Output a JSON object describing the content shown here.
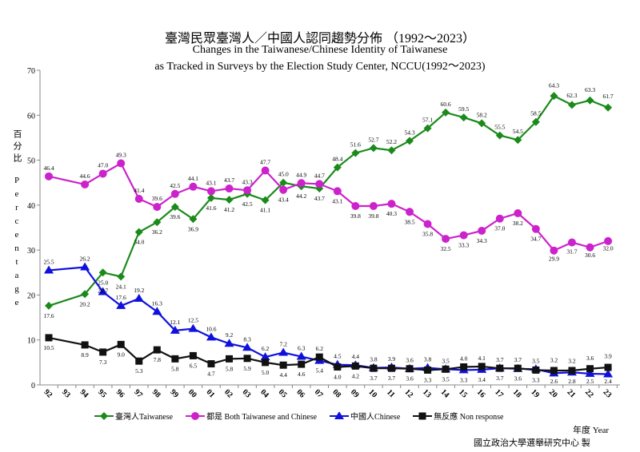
{
  "chart_data": {
    "type": "line",
    "title": "臺灣民眾臺灣人／中國人認同趨勢分佈 （1992～2023）",
    "subtitle_lines": [
      "Changes in the Taiwanese/Chinese Identity of Taiwanese",
      "as Tracked in Surveys by the Election Study Center, NCCU(1992～2023)"
    ],
    "ylabel_zh": "百分比",
    "ylabel_en": "Percentage",
    "xlabel": "年度 Year",
    "ylim": [
      0,
      70
    ],
    "yticks": [
      0,
      10,
      20,
      30,
      40,
      50,
      60,
      70
    ],
    "xticks": [
      "92",
      "93",
      "94",
      "95",
      "96",
      "97",
      "98",
      "99",
      "00",
      "01",
      "02",
      "03",
      "04",
      "05",
      "06",
      "07",
      "08",
      "09",
      "10",
      "11",
      "12",
      "13",
      "14",
      "15",
      "16",
      "17",
      "18",
      "19",
      "20",
      "21",
      "22",
      "23"
    ],
    "x": [
      "92",
      "94",
      "95",
      "96",
      "97",
      "98",
      "99",
      "00",
      "01",
      "02",
      "03",
      "04",
      "05",
      "06",
      "07",
      "08",
      "09",
      "10",
      "11",
      "12",
      "13",
      "14",
      "15",
      "16",
      "17",
      "18",
      "19",
      "20",
      "21",
      "22",
      "23"
    ],
    "grid": false,
    "legend_position": "bottom",
    "series": [
      {
        "name": "臺灣人Taiwanese",
        "color": "#1a8a1a",
        "marker": "diamond",
        "values": [
          17.6,
          20.2,
          25.0,
          24.1,
          34.0,
          36.2,
          39.6,
          36.9,
          41.6,
          41.2,
          42.5,
          41.1,
          45.0,
          44.2,
          43.7,
          48.4,
          51.6,
          52.7,
          52.2,
          54.3,
          57.1,
          60.6,
          59.5,
          58.2,
          55.5,
          54.5,
          58.5,
          64.3,
          62.3,
          63.3,
          61.7
        ]
      },
      {
        "name": "都是 Both Taiwanese and Chinese",
        "color": "#cc22cc",
        "marker": "circle",
        "values": [
          46.4,
          44.6,
          47.0,
          49.3,
          41.4,
          39.6,
          42.5,
          44.1,
          43.1,
          43.7,
          43.3,
          47.7,
          43.4,
          44.9,
          44.7,
          43.1,
          39.8,
          39.8,
          40.3,
          38.5,
          35.8,
          32.5,
          33.3,
          34.3,
          37.0,
          38.2,
          34.7,
          29.9,
          31.7,
          30.6,
          32.0
        ]
      },
      {
        "name": "中國人Chinese",
        "color": "#1010dd",
        "marker": "triangle",
        "values": [
          25.5,
          26.2,
          20.7,
          17.6,
          19.2,
          16.3,
          12.1,
          12.5,
          10.6,
          9.2,
          8.3,
          6.2,
          7.2,
          6.3,
          5.4,
          4.5,
          4.4,
          3.8,
          3.9,
          3.6,
          3.8,
          3.5,
          3.3,
          3.4,
          3.7,
          3.6,
          3.5,
          2.6,
          2.8,
          2.5,
          2.4
        ]
      },
      {
        "name": "無反應 Non response",
        "color": "#111111",
        "marker": "square",
        "values": [
          10.5,
          8.9,
          7.3,
          9.0,
          5.3,
          7.8,
          5.8,
          6.5,
          4.7,
          5.8,
          5.9,
          5.0,
          4.4,
          4.6,
          6.2,
          4.0,
          4.2,
          3.7,
          3.7,
          3.6,
          3.3,
          3.5,
          4.0,
          4.1,
          3.7,
          3.7,
          3.3,
          3.2,
          3.2,
          3.6,
          3.9
        ]
      }
    ],
    "source": "國立政治大學選舉研究中心 製"
  }
}
